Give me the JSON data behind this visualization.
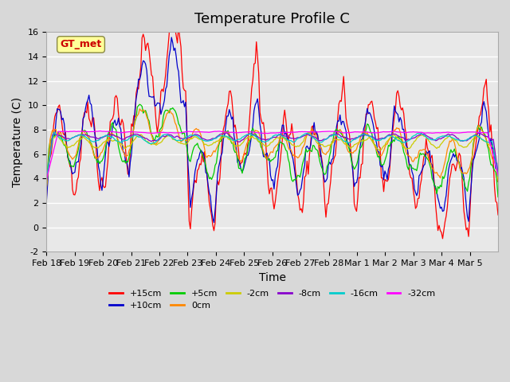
{
  "title": "Temperature Profile C",
  "xlabel": "Time",
  "ylabel": "Temperature (C)",
  "ylim": [
    -2,
    16
  ],
  "yticks": [
    -2,
    0,
    2,
    4,
    6,
    8,
    10,
    12,
    14,
    16
  ],
  "series": [
    {
      "label": "+15cm",
      "color": "#ff0000"
    },
    {
      "label": "+10cm",
      "color": "#0000cc"
    },
    {
      "label": "+5cm",
      "color": "#00cc00"
    },
    {
      "label": "0cm",
      "color": "#ff8800"
    },
    {
      "label": "-2cm",
      "color": "#cccc00"
    },
    {
      "label": "-8cm",
      "color": "#8800cc"
    },
    {
      "label": "-16cm",
      "color": "#00cccc"
    },
    {
      "label": "-32cm",
      "color": "#ff00ff"
    }
  ],
  "annotation_text": "GT_met",
  "annotation_color": "#cc0000",
  "annotation_bg": "#ffff99",
  "n_days": 16,
  "xtick_labels": [
    "Feb 18",
    "Feb 19",
    "Feb 20",
    "Feb 21",
    "Feb 22",
    "Feb 23",
    "Feb 24",
    "Feb 25",
    "Feb 26",
    "Feb 27",
    "Feb 28",
    "Mar 1",
    "Mar 2",
    "Mar 3",
    "Mar 4",
    "Mar 5"
  ],
  "title_fontsize": 13,
  "axis_label_fontsize": 10,
  "tick_fontsize": 8,
  "legend_fontsize": 8
}
